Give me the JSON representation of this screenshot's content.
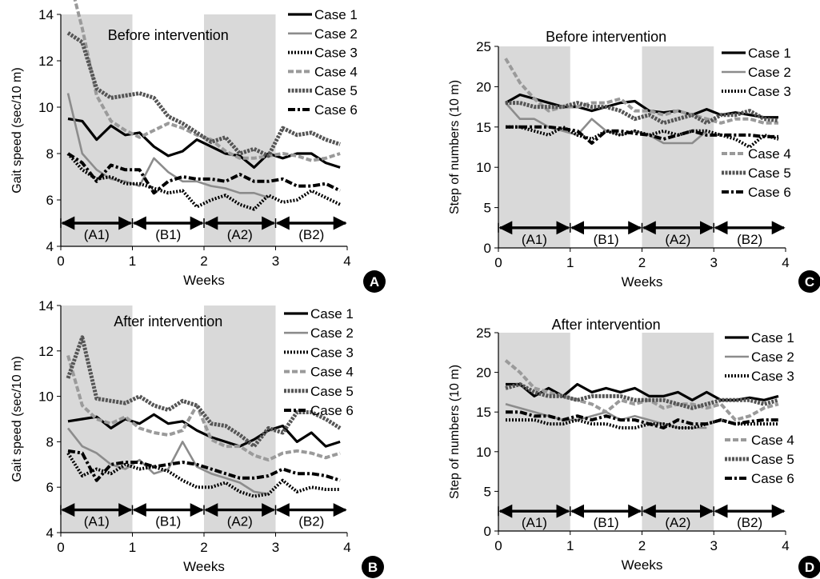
{
  "figure": {
    "phase_labels": [
      "(A1)",
      "(B1)",
      "(A2)",
      "(B2)"
    ],
    "legend_names": [
      "Case 1",
      "Case 2",
      "Case 3",
      "Case 4",
      "Case 5",
      "Case 6"
    ],
    "series_styles": [
      {
        "color": "#000000",
        "dash": "",
        "width": 3.2
      },
      {
        "color": "#8c8c8c",
        "dash": "",
        "width": 2.6
      },
      {
        "color": "#000000",
        "dash": "2,2",
        "width": 4
      },
      {
        "color": "#9a9a9a",
        "dash": "7,3",
        "width": 4
      },
      {
        "color": "#555555",
        "dash": "3,1.5",
        "width": 5
      },
      {
        "color": "#000000",
        "dash": "9,3,3,3",
        "width": 4
      }
    ],
    "shade_color": "#d9d9d9"
  },
  "chart_data": [
    {
      "type": "line",
      "panel": "A",
      "title": "Before intervention",
      "xlabel": "Weeks",
      "ylabel": "Gait speed (sec/10 m)",
      "xlim": [
        0,
        4
      ],
      "ylim": [
        4,
        14
      ],
      "yticks": [
        4,
        6,
        8,
        10,
        12,
        14
      ],
      "xticks": [
        0,
        1,
        2,
        3,
        4
      ],
      "shaded_x": [
        [
          0,
          1
        ],
        [
          2,
          3
        ]
      ],
      "phase_arrow_y": 5,
      "legend_position": "top-right",
      "legend_gap_after": -1,
      "x": [
        0.1,
        0.3,
        0.5,
        0.7,
        0.9,
        1.1,
        1.3,
        1.5,
        1.7,
        1.9,
        2.1,
        2.3,
        2.5,
        2.7,
        2.9,
        3.1,
        3.3,
        3.5,
        3.7,
        3.9
      ],
      "series": [
        {
          "name": "Case 1",
          "values": [
            9.5,
            9.4,
            8.6,
            9.2,
            8.8,
            8.9,
            8.3,
            7.9,
            8.1,
            8.6,
            8.3,
            8.0,
            7.9,
            7.4,
            8.0,
            7.8,
            8.0,
            8.0,
            7.6,
            7.4
          ]
        },
        {
          "name": "Case 2",
          "values": [
            10.6,
            8.0,
            7.3,
            6.9,
            6.8,
            6.6,
            7.8,
            7.2,
            6.8,
            6.8,
            6.6,
            6.5,
            6.3,
            6.3,
            6.1,
            null,
            null,
            null,
            null,
            null
          ]
        },
        {
          "name": "Case 3",
          "values": [
            8.0,
            7.3,
            6.9,
            7.0,
            6.7,
            6.7,
            6.5,
            6.3,
            6.4,
            5.7,
            6.0,
            6.2,
            5.8,
            5.6,
            6.2,
            5.9,
            6.0,
            6.4,
            6.1,
            5.8
          ]
        },
        {
          "name": "Case 4",
          "values": [
            15.8,
            13.4,
            10.5,
            9.4,
            9.0,
            8.7,
            9.0,
            9.3,
            9.1,
            8.8,
            8.6,
            8.1,
            7.8,
            7.8,
            7.9,
            8.0,
            7.9,
            7.7,
            7.8,
            8.0
          ]
        },
        {
          "name": "Case 5",
          "values": [
            13.2,
            12.8,
            10.8,
            10.4,
            10.5,
            10.6,
            10.4,
            9.6,
            9.3,
            8.9,
            8.5,
            8.7,
            8.0,
            8.2,
            7.9,
            9.1,
            8.8,
            8.9,
            8.6,
            8.4
          ]
        },
        {
          "name": "Case 6",
          "values": [
            8.0,
            7.6,
            6.8,
            7.5,
            7.3,
            7.3,
            6.3,
            6.8,
            7.0,
            6.9,
            6.9,
            6.8,
            7.1,
            6.8,
            6.8,
            6.9,
            6.6,
            6.6,
            6.7,
            6.4
          ]
        }
      ]
    },
    {
      "type": "line",
      "panel": "B",
      "title": "After intervention",
      "xlabel": "Weeks",
      "ylabel": "Gait speed (sec/10 m)",
      "xlim": [
        0,
        4
      ],
      "ylim": [
        4,
        14
      ],
      "yticks": [
        4,
        6,
        8,
        10,
        12,
        14
      ],
      "xticks": [
        0,
        1,
        2,
        3,
        4
      ],
      "shaded_x": [
        [
          0,
          1
        ],
        [
          2,
          3
        ]
      ],
      "phase_arrow_y": 5,
      "legend_position": "top-right",
      "legend_gap_after": -1,
      "x": [
        0.1,
        0.3,
        0.5,
        0.7,
        0.9,
        1.1,
        1.3,
        1.5,
        1.7,
        1.9,
        2.1,
        2.3,
        2.5,
        2.7,
        2.9,
        3.1,
        3.3,
        3.5,
        3.7,
        3.9
      ],
      "series": [
        {
          "name": "Case 1",
          "values": [
            8.9,
            9.0,
            9.1,
            8.6,
            9.0,
            8.8,
            9.2,
            8.8,
            8.9,
            8.5,
            8.2,
            8.0,
            7.8,
            8.1,
            8.5,
            8.7,
            8.0,
            8.4,
            7.8,
            8.0
          ]
        },
        {
          "name": "Case 2",
          "values": [
            8.6,
            7.8,
            7.5,
            7.0,
            6.8,
            7.2,
            6.6,
            6.8,
            8.0,
            6.9,
            6.6,
            6.4,
            6.2,
            5.8,
            5.7,
            null,
            null,
            null,
            null,
            null
          ]
        },
        {
          "name": "Case 3",
          "values": [
            7.5,
            6.5,
            6.8,
            6.6,
            7.0,
            6.8,
            6.9,
            6.7,
            6.3,
            6.0,
            6.0,
            6.2,
            5.8,
            5.6,
            5.7,
            6.3,
            5.8,
            6.0,
            5.9,
            5.9
          ]
        },
        {
          "name": "Case 4",
          "values": [
            11.8,
            9.6,
            9.0,
            8.8,
            9.1,
            8.6,
            8.4,
            8.3,
            8.5,
            9.6,
            8.1,
            7.8,
            7.8,
            7.4,
            7.2,
            7.5,
            7.6,
            7.5,
            7.3,
            7.5
          ]
        },
        {
          "name": "Case 5",
          "values": [
            10.8,
            12.6,
            9.9,
            9.8,
            9.7,
            10.0,
            9.6,
            9.4,
            9.8,
            9.6,
            8.8,
            8.7,
            8.3,
            7.8,
            8.6,
            8.4,
            9.3,
            9.3,
            9.0,
            8.6
          ]
        },
        {
          "name": "Case 6",
          "values": [
            7.6,
            7.5,
            6.3,
            7.0,
            7.1,
            7.1,
            6.9,
            7.0,
            7.1,
            7.0,
            6.8,
            6.6,
            6.4,
            6.4,
            6.5,
            6.8,
            6.6,
            6.6,
            6.5,
            6.3
          ]
        }
      ]
    },
    {
      "type": "line",
      "panel": "C",
      "title": "Before intervention",
      "xlabel": "Weeks",
      "ylabel": "Step of numbers (10 m)",
      "xlim": [
        0,
        4
      ],
      "ylim": [
        0,
        25
      ],
      "yticks": [
        0,
        5,
        10,
        15,
        20,
        25
      ],
      "xticks": [
        0,
        1,
        2,
        3,
        4
      ],
      "shaded_x": [
        [
          0,
          1
        ],
        [
          2,
          3
        ]
      ],
      "phase_arrow_y": 2.5,
      "legend_position": "right",
      "legend_gap_after": 2,
      "x": [
        0.1,
        0.3,
        0.5,
        0.7,
        0.9,
        1.1,
        1.3,
        1.5,
        1.7,
        1.9,
        2.1,
        2.3,
        2.5,
        2.7,
        2.9,
        3.1,
        3.3,
        3.5,
        3.7,
        3.9
      ],
      "series": [
        {
          "name": "Case 1",
          "values": [
            18.0,
            19.0,
            18.5,
            18.0,
            17.5,
            17.5,
            17.0,
            17.5,
            18.0,
            18.2,
            17.0,
            16.8,
            17.0,
            16.5,
            17.2,
            16.5,
            16.8,
            16.5,
            16.2,
            16.2
          ]
        },
        {
          "name": "Case 2",
          "values": [
            18.0,
            16.0,
            16.0,
            15.0,
            14.5,
            14.0,
            16.0,
            14.5,
            14.0,
            14.5,
            14.0,
            13.0,
            13.0,
            13.0,
            14.5,
            null,
            null,
            null,
            null,
            null
          ]
        },
        {
          "name": "Case 3",
          "values": [
            15.0,
            15.0,
            14.5,
            14.0,
            15.0,
            14.0,
            13.5,
            14.5,
            14.0,
            14.5,
            14.0,
            14.5,
            14.0,
            14.5,
            14.5,
            14.0,
            13.5,
            12.5,
            14.0,
            13.5
          ]
        },
        {
          "name": "Case 4",
          "values": [
            23.5,
            20.5,
            18.5,
            17.0,
            17.5,
            17.5,
            18.0,
            18.0,
            18.5,
            17.0,
            17.0,
            16.5,
            17.0,
            16.5,
            16.0,
            15.5,
            16.0,
            16.0,
            15.5,
            15.5
          ]
        },
        {
          "name": "Case 5",
          "values": [
            18.0,
            18.0,
            17.5,
            17.5,
            17.5,
            18.0,
            17.5,
            17.5,
            17.0,
            16.0,
            16.5,
            15.5,
            16.0,
            16.5,
            15.5,
            16.5,
            16.5,
            17.0,
            16.0,
            15.8
          ]
        },
        {
          "name": "Case 6",
          "values": [
            15.0,
            15.0,
            15.0,
            15.0,
            14.8,
            14.5,
            13.0,
            14.5,
            14.5,
            14.2,
            14.0,
            13.5,
            14.0,
            14.5,
            14.0,
            14.0,
            14.0,
            14.0,
            13.8,
            13.8
          ]
        }
      ]
    },
    {
      "type": "line",
      "panel": "D",
      "title": "After intervention",
      "xlabel": "Weeks",
      "ylabel": "Step of numbers (10 m)",
      "xlim": [
        0,
        4
      ],
      "ylim": [
        0,
        25
      ],
      "yticks": [
        0,
        5,
        10,
        15,
        20,
        25
      ],
      "xticks": [
        0,
        1,
        2,
        3,
        4
      ],
      "shaded_x": [
        [
          0,
          1
        ],
        [
          2,
          3
        ]
      ],
      "phase_arrow_y": 2.5,
      "legend_position": "right",
      "legend_gap_after": 2,
      "x": [
        0.1,
        0.3,
        0.5,
        0.7,
        0.9,
        1.1,
        1.3,
        1.5,
        1.7,
        1.9,
        2.1,
        2.3,
        2.5,
        2.7,
        2.9,
        3.1,
        3.3,
        3.5,
        3.7,
        3.9
      ],
      "series": [
        {
          "name": "Case 1",
          "values": [
            18.5,
            18.5,
            17.0,
            18.0,
            17.0,
            18.5,
            17.5,
            18.0,
            17.5,
            18.0,
            17.0,
            17.0,
            17.5,
            16.5,
            17.5,
            16.5,
            16.5,
            16.8,
            16.5,
            17.0
          ]
        },
        {
          "name": "Case 2",
          "values": [
            16.0,
            15.5,
            15.0,
            14.5,
            14.0,
            14.0,
            14.5,
            15.0,
            14.0,
            14.5,
            14.0,
            13.5,
            13.0,
            13.0,
            13.0,
            null,
            null,
            null,
            null,
            null
          ]
        },
        {
          "name": "Case 3",
          "values": [
            14.0,
            14.0,
            14.0,
            13.5,
            13.5,
            14.0,
            13.5,
            13.5,
            13.0,
            13.0,
            13.5,
            13.5,
            13.0,
            13.0,
            13.5,
            14.0,
            13.5,
            13.5,
            13.5,
            13.5
          ]
        },
        {
          "name": "Case 4",
          "values": [
            21.5,
            20.0,
            18.0,
            17.5,
            17.0,
            16.5,
            16.0,
            15.0,
            16.5,
            16.0,
            16.5,
            15.5,
            16.0,
            16.0,
            15.5,
            16.0,
            14.0,
            14.5,
            15.5,
            16.0
          ]
        },
        {
          "name": "Case 5",
          "values": [
            18.0,
            18.5,
            17.5,
            17.0,
            17.0,
            16.5,
            17.0,
            17.0,
            17.0,
            16.5,
            16.5,
            16.5,
            16.0,
            15.5,
            16.0,
            16.5,
            16.5,
            16.5,
            16.0,
            16.5
          ]
        },
        {
          "name": "Case 6",
          "values": [
            15.0,
            15.0,
            14.5,
            14.5,
            14.0,
            14.5,
            14.0,
            14.5,
            14.0,
            14.0,
            13.5,
            13.0,
            14.0,
            13.5,
            13.5,
            14.0,
            13.5,
            13.8,
            14.0,
            14.0
          ]
        }
      ]
    }
  ]
}
